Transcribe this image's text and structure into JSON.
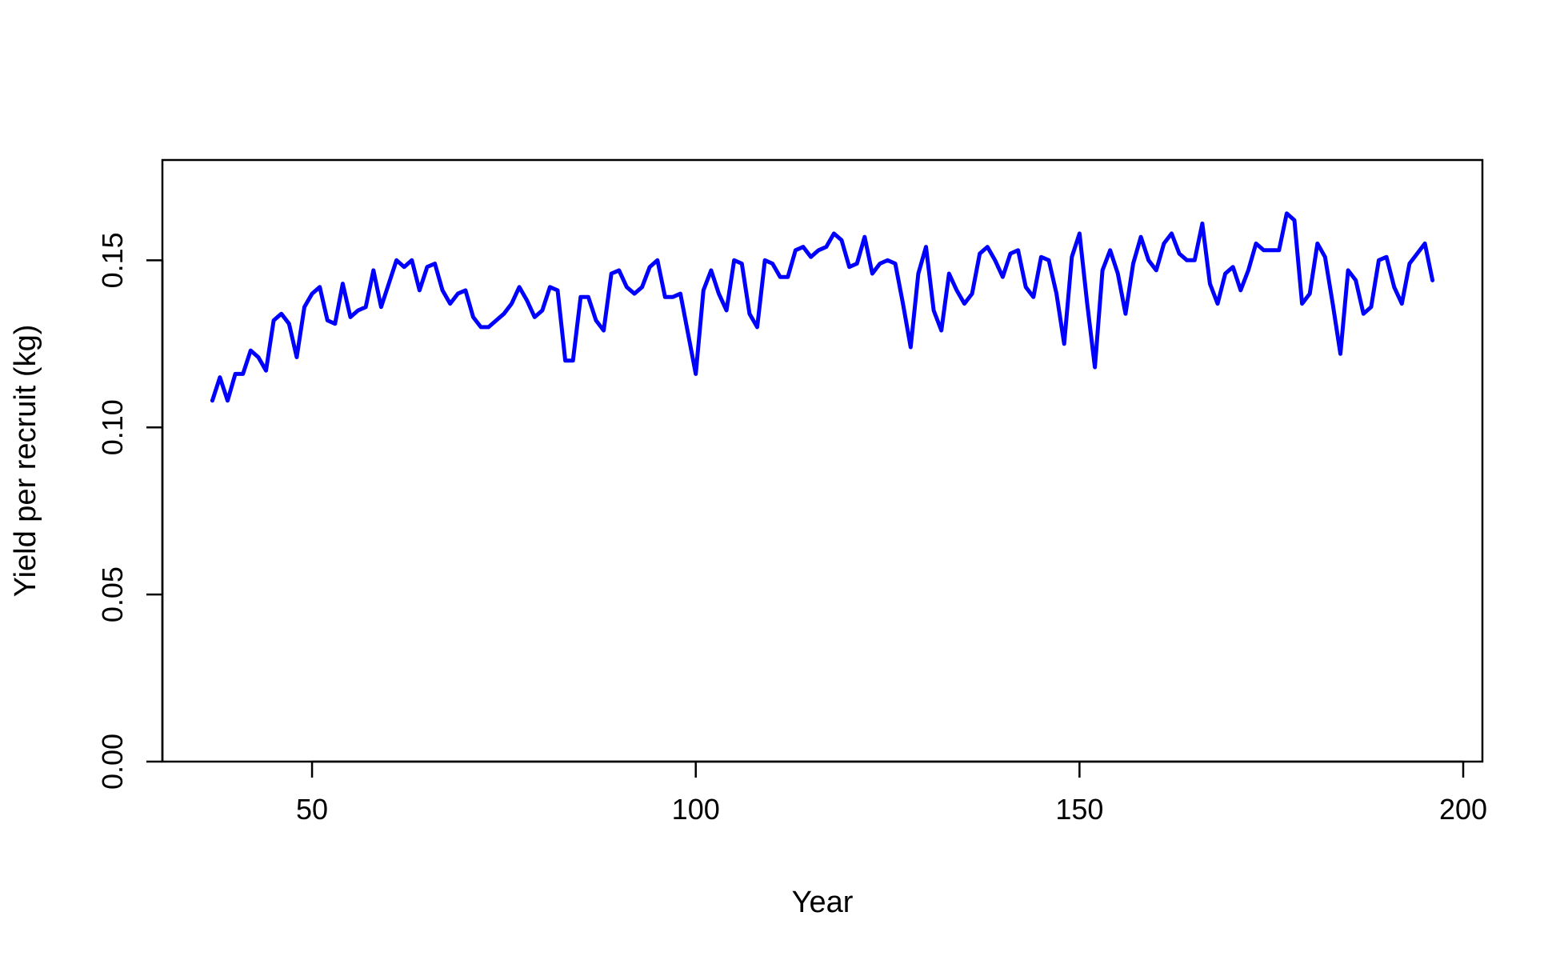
{
  "chart_data": {
    "type": "line",
    "title": "",
    "xlabel": "Year",
    "ylabel": "Yield per recruit (kg)",
    "xlim": [
      30.5,
      202.5
    ],
    "ylim": [
      0,
      0.18
    ],
    "xticks": [
      50,
      100,
      150,
      200
    ],
    "yticks": [
      0.0,
      0.05,
      0.1,
      0.15
    ],
    "xtick_labels": [
      "50",
      "100",
      "150",
      "200"
    ],
    "ytick_labels": [
      "0.00",
      "0.05",
      "0.10",
      "0.15"
    ],
    "grid": false,
    "box": true,
    "series": [
      {
        "color": "#0000ff",
        "x_start": 37,
        "x_step": 1,
        "y": [
          0.108,
          0.115,
          0.108,
          0.116,
          0.116,
          0.123,
          0.121,
          0.117,
          0.132,
          0.134,
          0.131,
          0.121,
          0.136,
          0.14,
          0.142,
          0.132,
          0.131,
          0.143,
          0.133,
          0.135,
          0.136,
          0.147,
          0.136,
          0.143,
          0.15,
          0.148,
          0.15,
          0.141,
          0.148,
          0.149,
          0.141,
          0.137,
          0.14,
          0.141,
          0.133,
          0.13,
          0.13,
          0.132,
          0.134,
          0.137,
          0.142,
          0.138,
          0.133,
          0.135,
          0.142,
          0.141,
          0.12,
          0.12,
          0.139,
          0.139,
          0.132,
          0.129,
          0.146,
          0.147,
          0.142,
          0.14,
          0.142,
          0.148,
          0.15,
          0.139,
          0.139,
          0.14,
          0.128,
          0.116,
          0.141,
          0.147,
          0.14,
          0.135,
          0.15,
          0.149,
          0.134,
          0.13,
          0.15,
          0.149,
          0.145,
          0.145,
          0.153,
          0.154,
          0.151,
          0.153,
          0.154,
          0.158,
          0.156,
          0.148,
          0.149,
          0.157,
          0.146,
          0.149,
          0.15,
          0.149,
          0.137,
          0.124,
          0.146,
          0.154,
          0.135,
          0.129,
          0.146,
          0.141,
          0.137,
          0.14,
          0.152,
          0.154,
          0.15,
          0.145,
          0.152,
          0.153,
          0.142,
          0.139,
          0.151,
          0.15,
          0.14,
          0.125,
          0.151,
          0.158,
          0.137,
          0.118,
          0.147,
          0.153,
          0.146,
          0.134,
          0.149,
          0.157,
          0.15,
          0.147,
          0.155,
          0.158,
          0.152,
          0.15,
          0.15,
          0.161,
          0.143,
          0.137,
          0.146,
          0.148,
          0.141,
          0.147,
          0.155,
          0.153,
          0.153,
          0.153,
          0.164,
          0.162,
          0.137,
          0.14,
          0.155,
          0.151,
          0.137,
          0.122,
          0.147,
          0.144,
          0.134,
          0.136,
          0.15,
          0.151,
          0.142,
          0.137,
          0.149,
          0.152,
          0.155,
          0.144
        ]
      }
    ]
  }
}
